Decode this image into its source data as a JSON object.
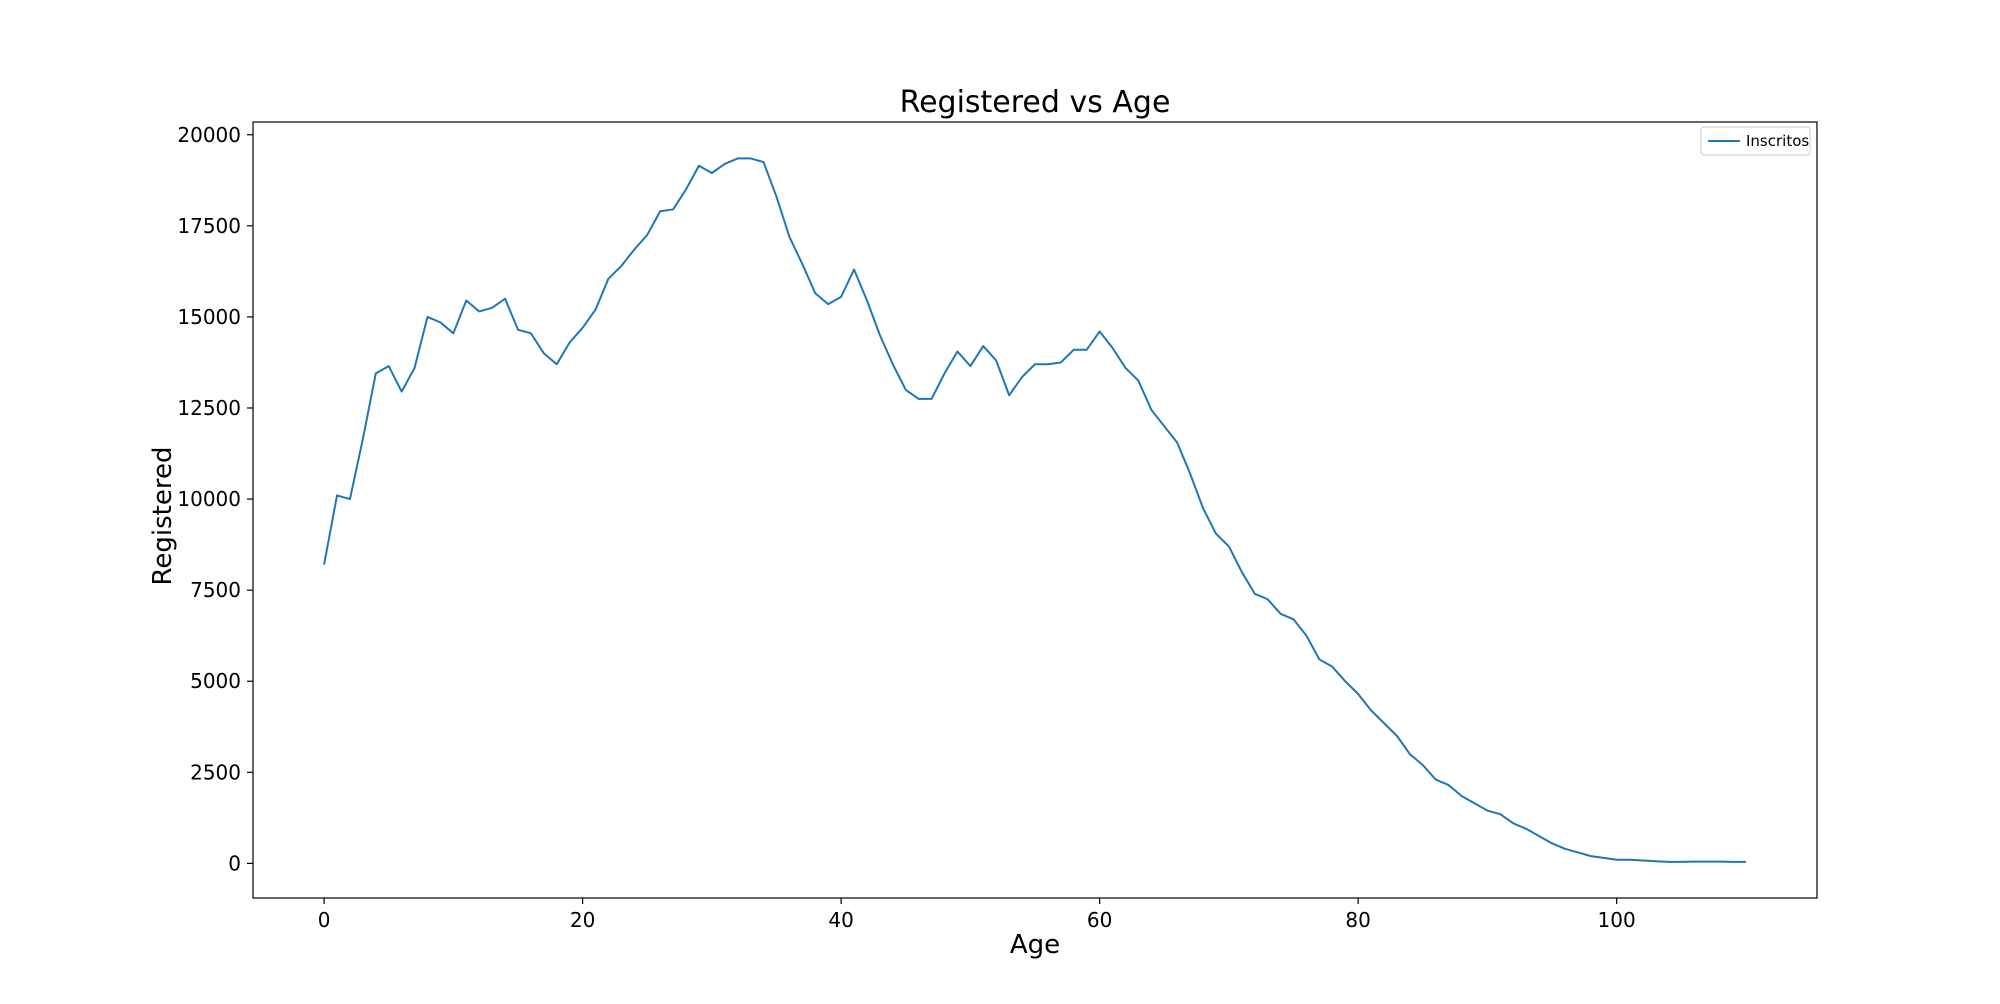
{
  "chart_data": {
    "type": "line",
    "title": "Registered vs Age",
    "xlabel": "Age",
    "ylabel": "Registered",
    "xlim": [
      -5.5,
      115.5
    ],
    "ylim": [
      -950,
      20350
    ],
    "xticks": [
      0,
      20,
      40,
      60,
      80,
      100
    ],
    "yticks": [
      0,
      2500,
      5000,
      7500,
      10000,
      12500,
      15000,
      17500,
      20000
    ],
    "grid": false,
    "legend": {
      "position": "top-right",
      "entries": [
        "Inscritos"
      ]
    },
    "colors": {
      "series": "#1f77b4",
      "axes": "#000000",
      "background": "#ffffff"
    },
    "series": [
      {
        "name": "Inscritos",
        "x": [
          0,
          1,
          2,
          3,
          4,
          5,
          6,
          7,
          8,
          9,
          10,
          11,
          12,
          13,
          14,
          15,
          16,
          17,
          18,
          19,
          20,
          21,
          22,
          23,
          24,
          25,
          26,
          27,
          28,
          29,
          30,
          31,
          32,
          33,
          34,
          35,
          36,
          37,
          38,
          39,
          40,
          41,
          42,
          43,
          44,
          45,
          46,
          47,
          48,
          49,
          50,
          51,
          52,
          53,
          54,
          55,
          56,
          57,
          58,
          59,
          60,
          61,
          62,
          63,
          64,
          65,
          66,
          67,
          68,
          69,
          70,
          71,
          72,
          73,
          74,
          75,
          76,
          77,
          78,
          79,
          80,
          81,
          82,
          83,
          84,
          85,
          86,
          87,
          88,
          89,
          90,
          91,
          92,
          93,
          94,
          95,
          96,
          97,
          98,
          99,
          100,
          101,
          102,
          103,
          104,
          105,
          106,
          107,
          108,
          109,
          110
        ],
        "y": [
          8200,
          10100,
          10000,
          11650,
          13450,
          13650,
          12950,
          13600,
          15000,
          14850,
          14550,
          15450,
          15150,
          15250,
          15500,
          14650,
          14550,
          14000,
          13700,
          14300,
          14700,
          15200,
          16050,
          16400,
          16850,
          17250,
          17900,
          17950,
          18500,
          19150,
          18950,
          19200,
          19350,
          19350,
          19250,
          18300,
          17200,
          16450,
          15650,
          15350,
          15550,
          16300,
          15450,
          14500,
          13700,
          13000,
          12750,
          12750,
          13450,
          14050,
          13650,
          14200,
          13800,
          12850,
          13350,
          13700,
          13700,
          13750,
          14100,
          14100,
          14600,
          14150,
          13600,
          13250,
          12450,
          12000,
          11550,
          10700,
          9750,
          9050,
          8700,
          8000,
          7400,
          7250,
          6850,
          6700,
          6250,
          5600,
          5400,
          5000,
          4650,
          4200,
          3850,
          3500,
          3000,
          2700,
          2300,
          2150,
          1850,
          1650,
          1450,
          1350,
          1100,
          950,
          750,
          550,
          400,
          300,
          200,
          150,
          100,
          100,
          80,
          60,
          40,
          40,
          50,
          50,
          50,
          40,
          40
        ]
      }
    ]
  }
}
